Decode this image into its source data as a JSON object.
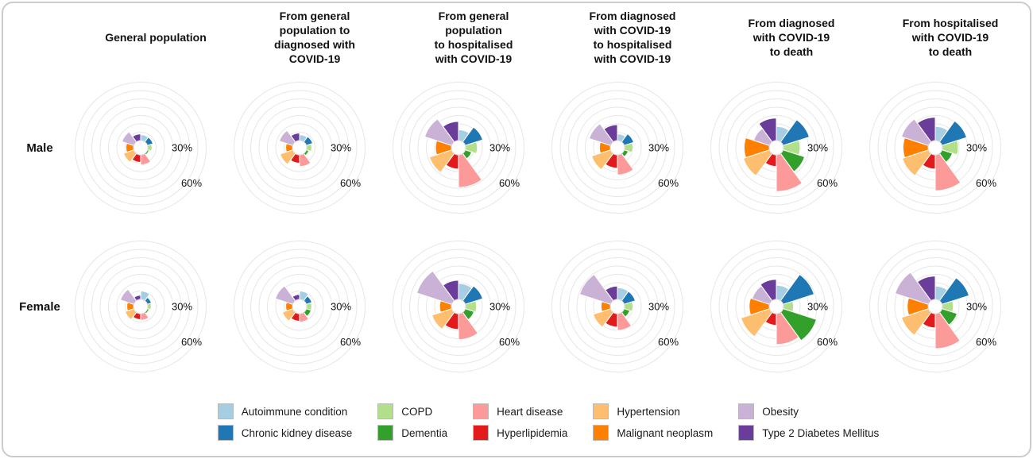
{
  "figure": {
    "row_labels": [
      "Male",
      "Female"
    ],
    "column_headers": [
      "General population",
      "From general\npopulation to\ndiagnosed with\nCOVID-19",
      "From general\npopulation\nto hospitalised\nwith COVID-19",
      "From diagnosed\nwith COVID-19\nto hospitalised\nwith COVID-19",
      "From diagnosed\nwith COVID-19\nto death",
      "From hospitalised\nwith COVID-19\nto death"
    ],
    "radial_ticks": [
      "30%",
      "60%"
    ]
  },
  "legend": {
    "items": [
      {
        "label": "Autoimmune condition",
        "color": "#a6cee3"
      },
      {
        "label": "Chronic kidney disease",
        "color": "#1f78b4"
      },
      {
        "label": "COPD",
        "color": "#b2df8a"
      },
      {
        "label": "Dementia",
        "color": "#33a02c"
      },
      {
        "label": "Heart disease",
        "color": "#fb9a99"
      },
      {
        "label": "Hyperlipidemia",
        "color": "#e31a1c"
      },
      {
        "label": "Hypertension",
        "color": "#fdbf6f"
      },
      {
        "label": "Malignant neoplasm",
        "color": "#ff7f00"
      },
      {
        "label": "Obesity",
        "color": "#cab2d6"
      },
      {
        "label": "Type 2 Diabetes Mellitus",
        "color": "#6a3d9a"
      }
    ]
  },
  "chart_data": {
    "type": "polar-bar",
    "units": "percent prevalence",
    "conditions": [
      "Autoimmune condition",
      "Chronic kidney disease",
      "COPD",
      "Dementia",
      "Heart disease",
      "Hyperlipidemia",
      "Hypertension",
      "Malignant neoplasm",
      "Obesity",
      "Type 2 Diabetes Mellitus"
    ],
    "colors": {
      "Autoimmune condition": "#a6cee3",
      "Chronic kidney disease": "#1f78b4",
      "COPD": "#b2df8a",
      "Dementia": "#33a02c",
      "Heart disease": "#fb9a99",
      "Hyperlipidemia": "#e31a1c",
      "Hypertension": "#fdbf6f",
      "Malignant neoplasm": "#ff7f00",
      "Obesity": "#cab2d6",
      "Type 2 Diabetes Mellitus": "#6a3d9a"
    },
    "angular_layout": "10 equal 36-degree sectors, alphabetical clockwise from 12 o'clock",
    "radial_axis": {
      "gridline_interval": 10,
      "max": 70,
      "labeled_ticks": [
        30,
        60
      ]
    },
    "charts": [
      {
        "row": "Male",
        "column": "General population",
        "values": [
          7,
          7,
          5,
          2,
          12,
          9,
          13,
          9,
          15,
          8
        ]
      },
      {
        "row": "Male",
        "column": "From general population to diagnosed with COVID-19",
        "values": [
          7,
          8,
          6,
          3,
          14,
          10,
          16,
          8,
          17,
          9
        ]
      },
      {
        "row": "Male",
        "column": "From general population to hospitalised with COVID-19",
        "values": [
          13,
          22,
          14,
          8,
          39,
          17,
          28,
          19,
          34,
          23
        ]
      },
      {
        "row": "Male",
        "column": "From diagnosed with COVID-19 to hospitalised with COVID-19",
        "values": [
          8,
          12,
          10,
          5,
          24,
          16,
          24,
          13,
          27,
          19
        ]
      },
      {
        "row": "Male",
        "column": "From diagnosed with COVID-19 to death",
        "values": [
          17,
          33,
          20,
          27,
          44,
          14,
          33,
          30,
          20,
          27
        ]
      },
      {
        "row": "Male",
        "column": "From hospitalised with COVID-19 to death",
        "values": [
          17,
          31,
          19,
          13,
          43,
          17,
          33,
          30,
          34,
          28
        ]
      },
      {
        "row": "Female",
        "column": "General population",
        "values": [
          10,
          5,
          4,
          2,
          8,
          7,
          11,
          8,
          17,
          5
        ]
      },
      {
        "row": "Female",
        "column": "From general population to diagnosed with COVID-19",
        "values": [
          10,
          7,
          6,
          6,
          10,
          9,
          13,
          8,
          22,
          6
        ]
      },
      {
        "row": "Female",
        "column": "From general population to hospitalised with COVID-19",
        "values": [
          19,
          22,
          13,
          11,
          31,
          19,
          25,
          14,
          44,
          23
        ]
      },
      {
        "row": "Female",
        "column": "From diagnosed with COVID-19 to hospitalised with COVID-19",
        "values": [
          14,
          14,
          10,
          7,
          20,
          16,
          22,
          11,
          39,
          16
        ]
      },
      {
        "row": "Female",
        "column": "From diagnosed with COVID-19 to death",
        "values": [
          17,
          39,
          12,
          42,
          37,
          14,
          36,
          24,
          22,
          24
        ]
      },
      {
        "row": "Female",
        "column": "From hospitalised with COVID-19 to death",
        "values": [
          16,
          34,
          13,
          19,
          42,
          17,
          34,
          25,
          42,
          28
        ]
      }
    ]
  }
}
